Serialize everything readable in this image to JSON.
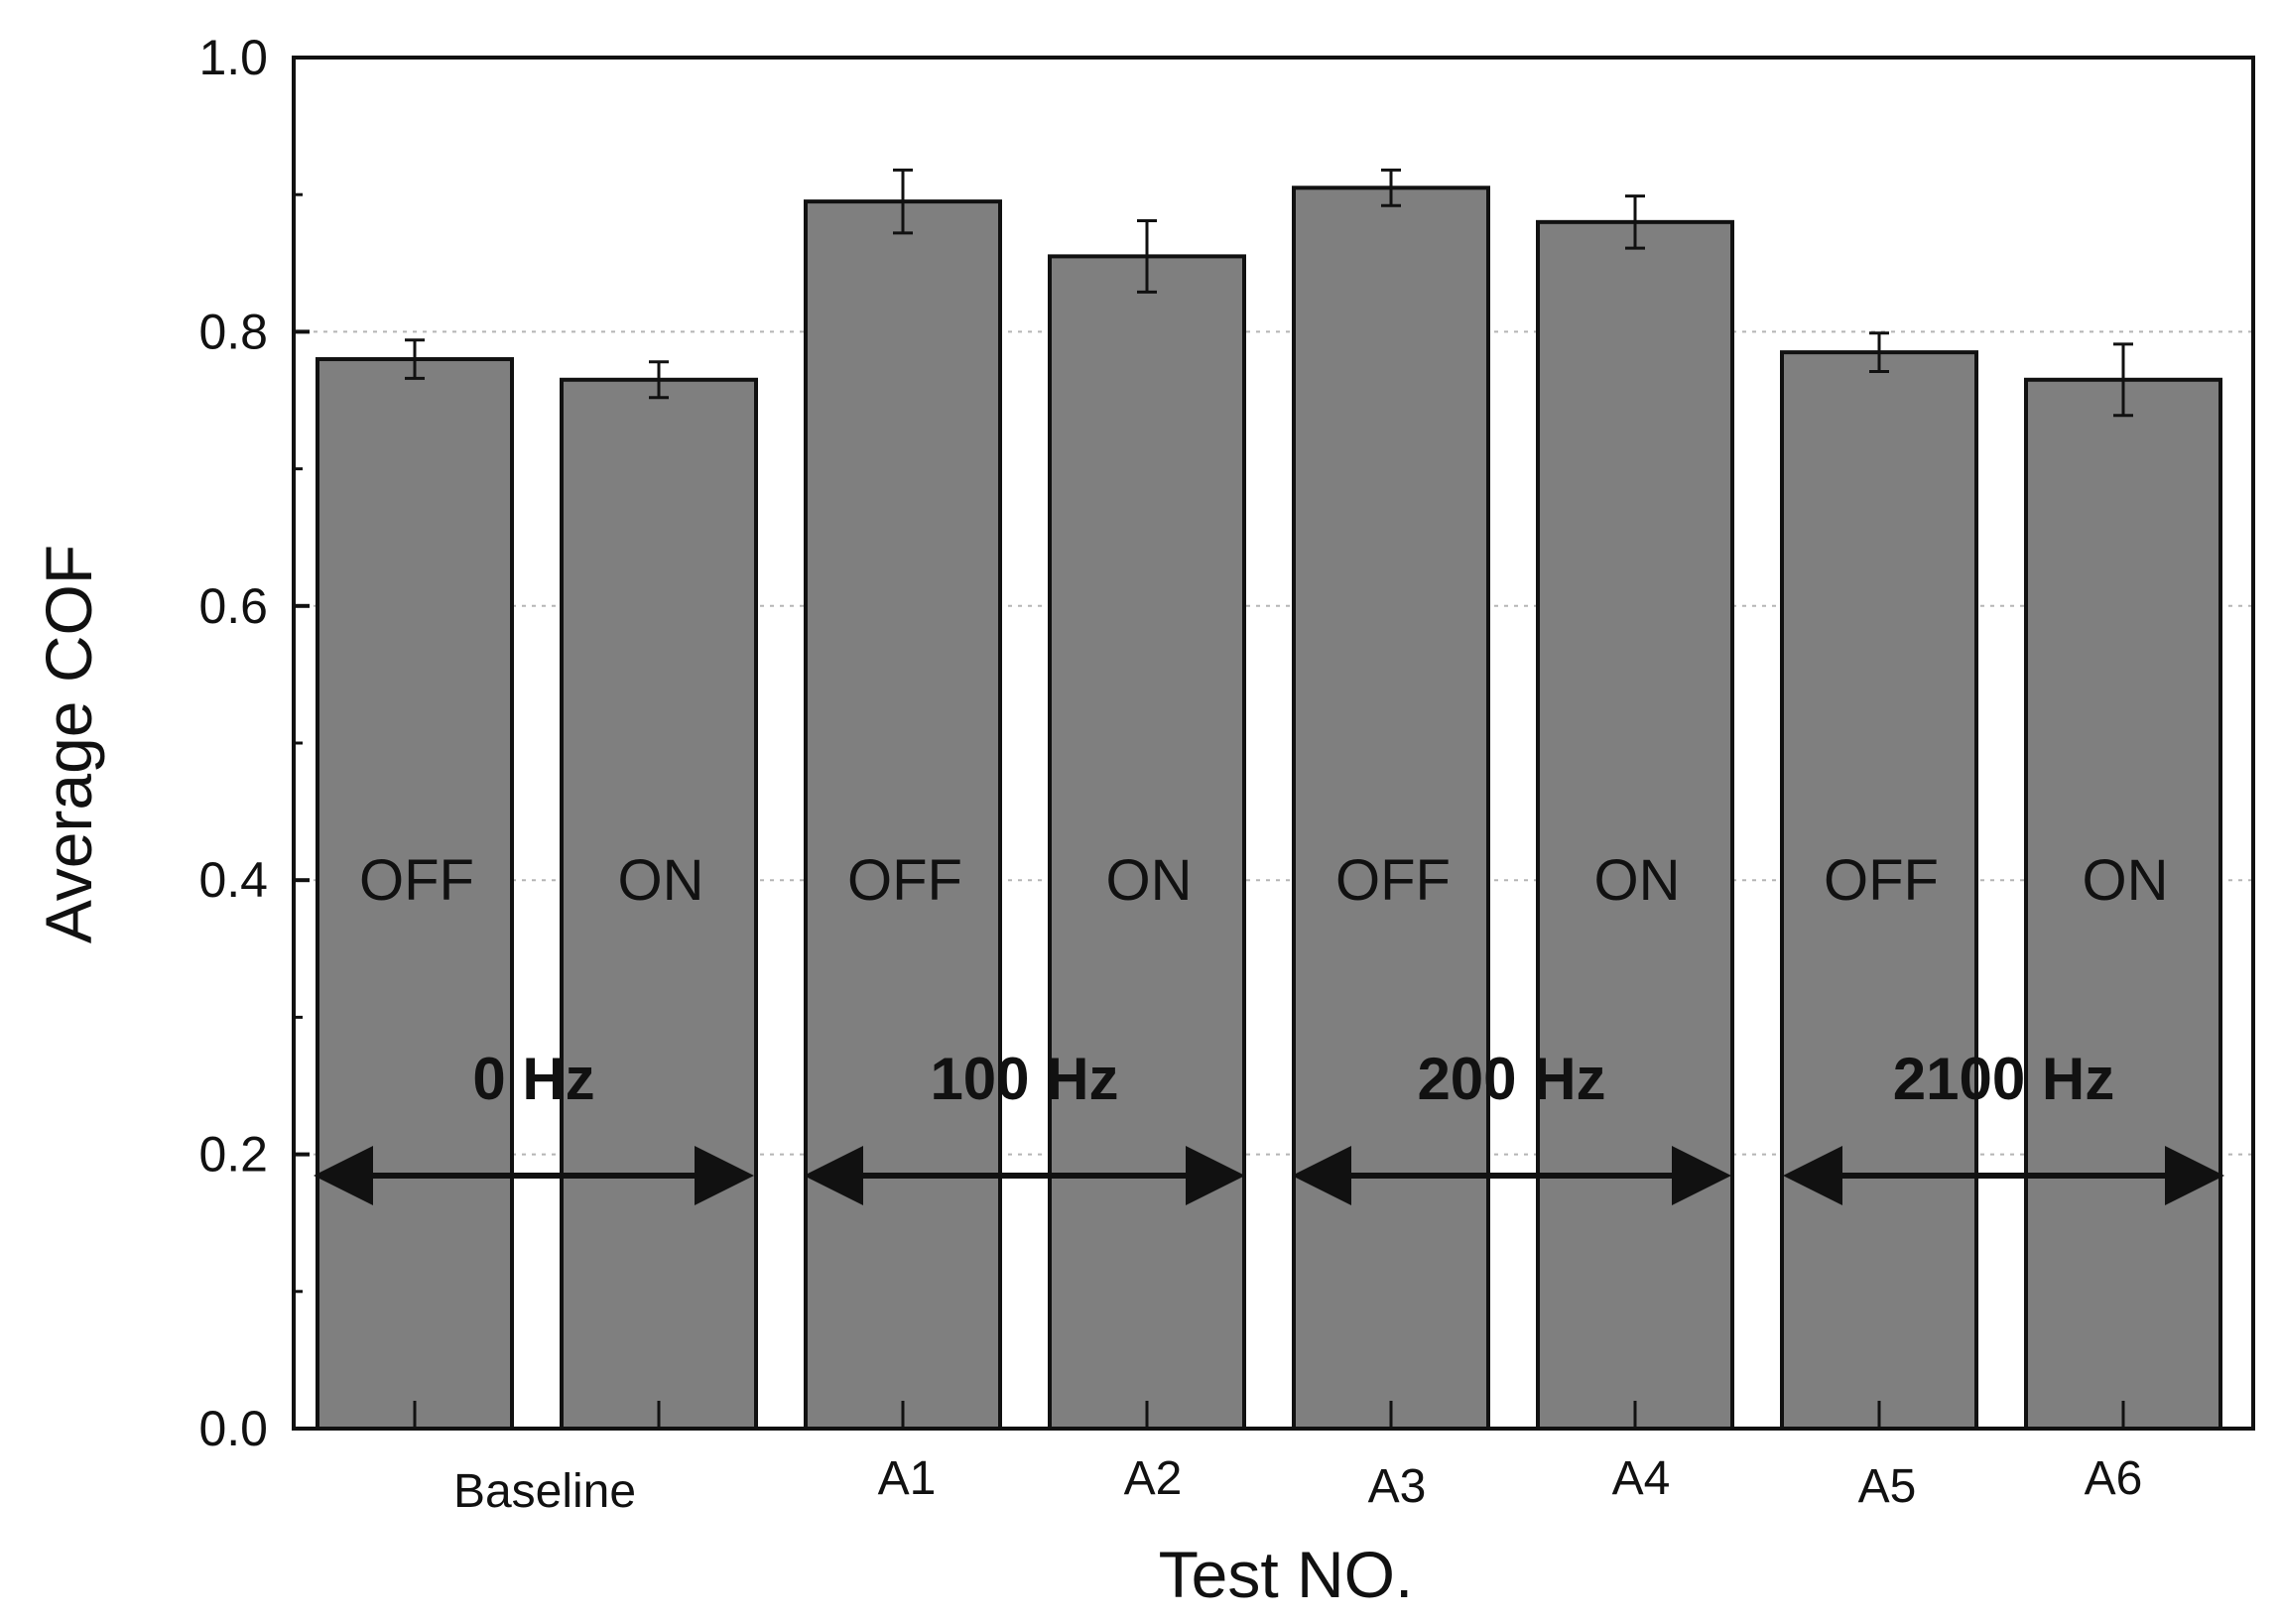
{
  "chart_data": {
    "type": "bar",
    "title": "",
    "xlabel": "Test NO.",
    "ylabel": "Average COF",
    "ylim": [
      0,
      1.0
    ],
    "yticks": [
      "0.0",
      "0.2",
      "0.4",
      "0.6",
      "0.8",
      "1.0"
    ],
    "grid": "horizontal-dotted",
    "categories": [
      "Baseline",
      "A1",
      "A2",
      "A3",
      "A4",
      "A5",
      "A6"
    ],
    "bars": [
      {
        "state": "OFF",
        "value": 0.78,
        "error": 0.014
      },
      {
        "state": "ON",
        "value": 0.765,
        "error": 0.013
      },
      {
        "state": "OFF",
        "value": 0.895,
        "error": 0.023
      },
      {
        "state": "ON",
        "value": 0.855,
        "error": 0.026
      },
      {
        "state": "OFF",
        "value": 0.905,
        "error": 0.013
      },
      {
        "state": "ON",
        "value": 0.88,
        "error": 0.019
      },
      {
        "state": "OFF",
        "value": 0.785,
        "error": 0.014
      },
      {
        "state": "ON",
        "value": 0.765,
        "error": 0.026
      }
    ],
    "groups": [
      "0 Hz",
      "100 Hz",
      "200 Hz",
      "2100 Hz"
    ],
    "bar_color": "#7f7f7f"
  }
}
